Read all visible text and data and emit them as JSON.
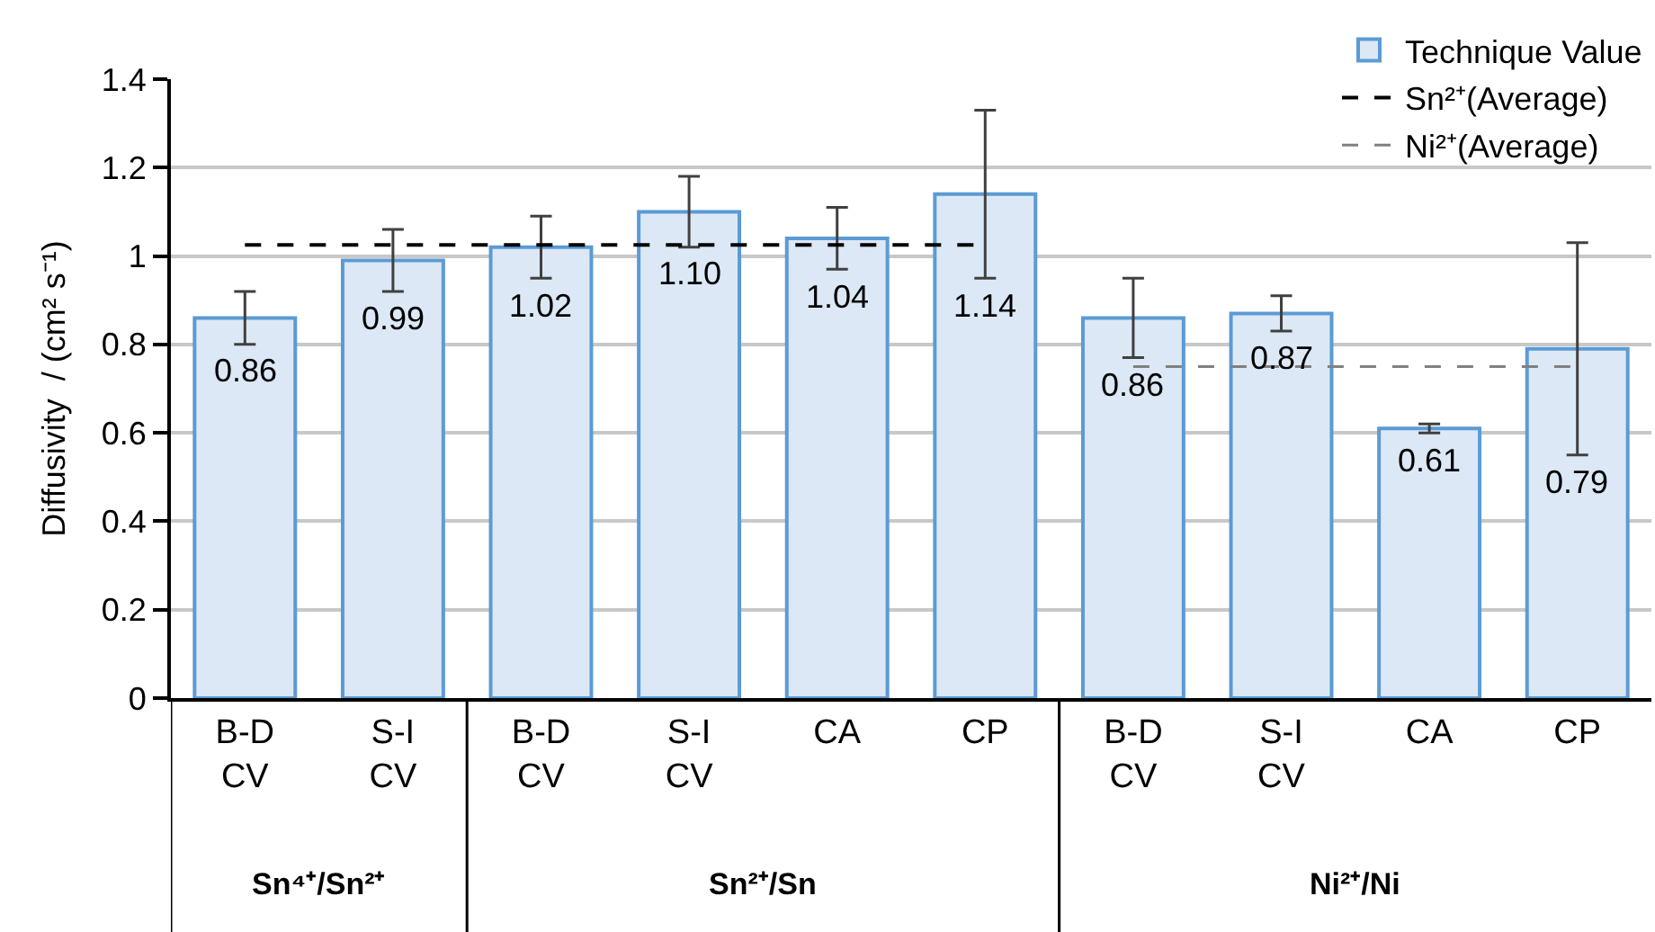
{
  "chart_data": {
    "type": "bar",
    "ylabel": "Diffusivity  / (cm² s⁻¹)",
    "categories": [
      "B-D CV",
      "S-I CV",
      "B-D CV",
      "S-I CV",
      "CA",
      "CP",
      "B-D CV",
      "S-I CV",
      "CA",
      "CP"
    ],
    "series": [
      {
        "name": "Technique Value",
        "color": "#dce8f5",
        "values": [
          0.86,
          0.99,
          1.02,
          1.1,
          1.04,
          1.14,
          0.86,
          0.87,
          0.61,
          0.79
        ],
        "value_labels": [
          "0.86",
          "0.99",
          "1.02",
          "1.10",
          "1.04",
          "1.14",
          "0.86",
          "0.87",
          "0.61",
          "0.79"
        ],
        "errors": [
          [
            0.8,
            0.92
          ],
          [
            0.92,
            1.06
          ],
          [
            0.95,
            1.09
          ],
          [
            1.02,
            1.18
          ],
          [
            0.97,
            1.11
          ],
          [
            0.95,
            1.33
          ],
          [
            0.77,
            0.95
          ],
          [
            0.83,
            0.91
          ],
          [
            0.6,
            0.62
          ],
          [
            0.55,
            1.03
          ]
        ]
      },
      {
        "name": "Sn²⁺(Average)",
        "type": "line",
        "color": "#000000",
        "line_style": "dashed",
        "values": [
          1.025,
          1.025,
          1.025,
          1.025,
          1.025,
          1.025,
          null,
          null,
          null,
          null
        ]
      },
      {
        "name": "Ni²⁺(Average)",
        "type": "line",
        "color": "#808080",
        "line_style": "dashed",
        "values": [
          null,
          null,
          null,
          null,
          null,
          null,
          0.75,
          0.75,
          0.75,
          0.75
        ]
      }
    ],
    "annotations": [
      "Sn⁴⁺/Sn²⁺",
      "Sn²⁺/Sn",
      "Ni²⁺/Ni"
    ],
    "ylim": [
      0,
      1.4
    ],
    "yticks": [
      0,
      0.2,
      0.4,
      0.6,
      0.8,
      1,
      1.2,
      1.4
    ],
    "grid": "y",
    "legend": "top right"
  }
}
